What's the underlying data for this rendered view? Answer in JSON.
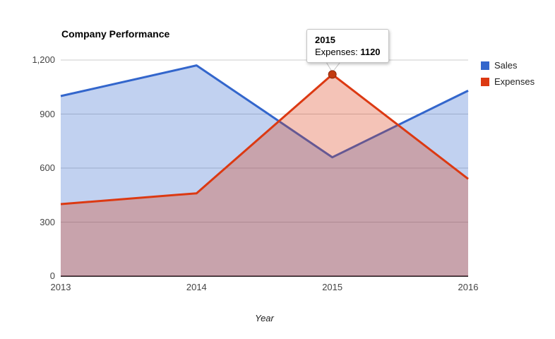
{
  "chart_data": {
    "type": "area",
    "title": "Company Performance",
    "xlabel": "Year",
    "ylabel": "",
    "categories": [
      "2013",
      "2014",
      "2015",
      "2016"
    ],
    "series": [
      {
        "name": "Sales",
        "values": [
          1000,
          1170,
          660,
          1030
        ],
        "color": "#3366cc"
      },
      {
        "name": "Expenses",
        "values": [
          400,
          460,
          1120,
          540
        ],
        "color": "#dc3912"
      }
    ],
    "ylim": [
      0,
      1200
    ],
    "yticks": [
      0,
      300,
      600,
      900,
      1200
    ],
    "ytick_labels": [
      "0",
      "300",
      "600",
      "900",
      "1,200"
    ],
    "area_opacity": 0.3,
    "line_width": 3,
    "grid": true,
    "gridline_color": "#cccccc",
    "baseline_color": "#333333",
    "background_color": "#ffffff",
    "legend_position": "right",
    "highlighted_point": {
      "category": "2015",
      "series": "Expenses",
      "value": 1120,
      "color": "#c23b10",
      "ring_color": "#8e2a0b"
    }
  },
  "tooltip": {
    "category": "2015",
    "series_label": "Expenses:",
    "value": "1120"
  }
}
